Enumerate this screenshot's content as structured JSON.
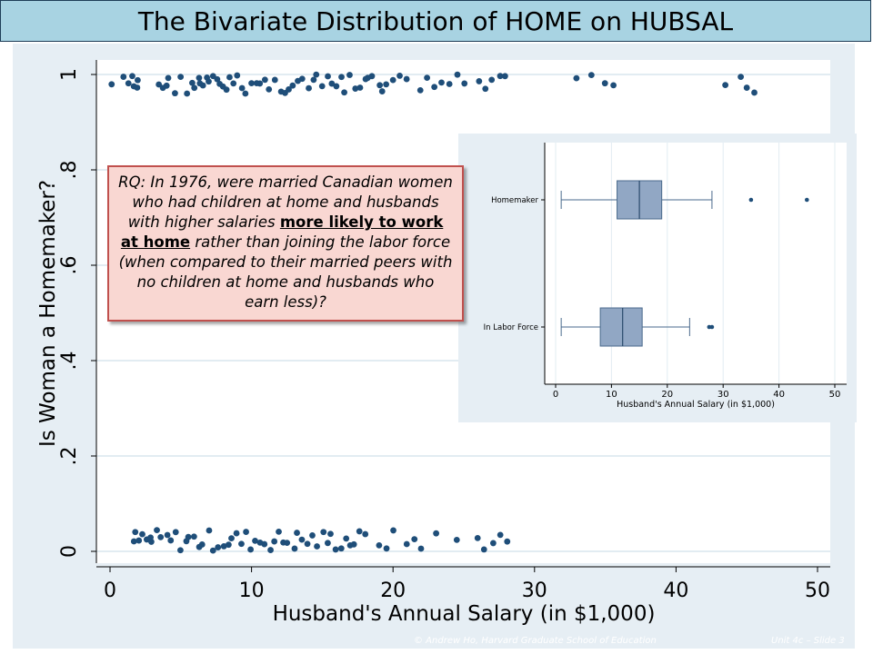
{
  "title": "The Bivariate Distribution of HOME on HUBSAL",
  "callout": {
    "before": "RQ: In 1976, were married Canadian women who had children at home and husbands with higher salaries ",
    "emph": "more likely to work at home",
    "after": " rather than joining the labor force (when compared to their married peers with no children at home and husbands who earn less)?"
  },
  "footer": {
    "left": "© Andrew Ho, Harvard Graduate School of Education",
    "right": "Unit 4c – Slide 3"
  },
  "colors": {
    "marker": "#1f4e79",
    "box": "#91a7c4",
    "title_bg": "#a8d3e2",
    "callout_bg": "#f9d7d2",
    "callout_border": "#c0504d"
  },
  "chart_data": [
    {
      "type": "scatter",
      "xlabel": "Husband's Annual Salary (in $1,000)",
      "ylabel": "Is Woman a Homemaker?",
      "xlim": [
        0,
        50
      ],
      "ylim": [
        0,
        1
      ],
      "x_ticks": [
        0,
        10,
        20,
        30,
        40,
        50
      ],
      "y_ticks": [
        0,
        0.2,
        0.4,
        0.6,
        0.8,
        1
      ],
      "y_tick_labels": [
        "0",
        ".2",
        ".4",
        ".6",
        ".8",
        "1"
      ],
      "grid": true,
      "jittered": true,
      "series": [
        {
          "y": 1,
          "x": [
            0.1,
            1.0,
            1.3,
            1.5,
            1.7,
            1.9,
            2.0,
            3.5,
            3.8,
            4.0,
            4.2,
            4.5,
            5.0,
            5.5,
            5.8,
            6.0,
            6.2,
            6.4,
            6.6,
            6.8,
            7.0,
            7.2,
            7.5,
            7.8,
            8.0,
            8.2,
            8.5,
            8.8,
            9.0,
            9.3,
            9.6,
            10.0,
            10.3,
            10.6,
            11.0,
            11.3,
            11.6,
            12.0,
            12.3,
            12.6,
            13.0,
            13.3,
            13.6,
            14.0,
            14.3,
            14.6,
            15.0,
            15.3,
            15.6,
            16.0,
            16.3,
            16.6,
            17.0,
            17.3,
            17.6,
            18.0,
            18.3,
            18.6,
            19.0,
            19.3,
            19.6,
            20.0,
            20.5,
            21.0,
            22.0,
            22.5,
            23.0,
            23.5,
            24.0,
            24.5,
            25.0,
            26.0,
            26.5,
            27.0,
            27.5,
            28.0,
            33.0,
            34.0,
            35.0,
            35.5,
            43.5,
            44.5,
            45.0,
            45.5
          ]
        },
        {
          "y": 0,
          "x": [
            1.6,
            1.8,
            2.0,
            2.2,
            2.5,
            2.8,
            3.0,
            3.3,
            3.6,
            4.0,
            4.3,
            4.6,
            5.0,
            5.3,
            5.6,
            6.0,
            6.3,
            6.6,
            7.0,
            7.3,
            7.6,
            8.0,
            8.3,
            8.6,
            9.0,
            9.3,
            9.6,
            10.0,
            10.3,
            10.6,
            11.0,
            11.3,
            11.6,
            12.0,
            12.3,
            12.6,
            13.0,
            13.3,
            13.6,
            14.0,
            14.3,
            14.6,
            15.0,
            15.3,
            15.6,
            16.0,
            16.3,
            16.6,
            17.0,
            17.3,
            17.6,
            18.0,
            19.0,
            19.5,
            20.0,
            21.0,
            21.5,
            22.0,
            23.0,
            24.5,
            26.0,
            26.5,
            27.0,
            27.5,
            28.0
          ]
        }
      ]
    },
    {
      "type": "box",
      "orientation": "horizontal",
      "xlabel": "Husband's Annual Salary (in $1,000)",
      "xlim": [
        0,
        50
      ],
      "x_ticks": [
        0,
        10,
        20,
        30,
        40,
        50
      ],
      "categories": [
        "Homemaker",
        "In Labor Force"
      ],
      "boxes": [
        {
          "whisker_low": 1,
          "q1": 11,
          "median": 15,
          "q3": 19,
          "whisker_high": 28,
          "outliers": [
            35,
            45
          ]
        },
        {
          "whisker_low": 1,
          "q1": 8,
          "median": 12,
          "q3": 15.5,
          "whisker_high": 24,
          "outliers": [
            27.5,
            28
          ]
        }
      ]
    }
  ]
}
